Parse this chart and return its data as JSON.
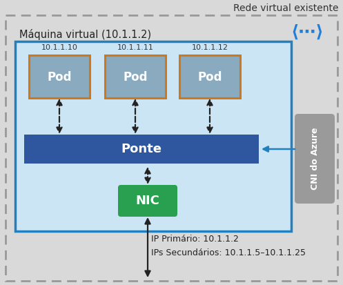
{
  "title": "Rede virtual existente",
  "vm_label": "Máquina virtual (10.1.1.2)",
  "pod_ips": [
    "10.1.1.10",
    "10.1.1.11",
    "10.1.1.12"
  ],
  "pod_label": "Pod",
  "bridge_label": "Ponte",
  "nic_label": "NIC",
  "cni_label": "CNI do Azure",
  "ip_primary": "IP Primário: 10.1.1.2",
  "ip_secondary": "IPs Secundários: 10.1.1.5–10.1.1.25",
  "bg_outer": "#d9d9d9",
  "bg_vm": "#cce5f5",
  "border_vm": "#2080c0",
  "pod_fill": "#8aaabf",
  "pod_border": "#d07818",
  "bridge_fill": "#2e57a0",
  "bridge_text": "#ffffff",
  "nic_fill": "#28a050",
  "nic_text": "#ffffff",
  "cni_fill": "#9a9a9a",
  "cni_text": "#ffffff",
  "arrow_dashed": "#222222",
  "arrow_solid": "#2080c0",
  "dots_color": "#2080d8",
  "figsize": [
    4.97,
    4.13
  ],
  "dpi": 100
}
